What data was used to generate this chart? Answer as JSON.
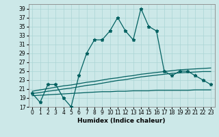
{
  "xlabel": "Humidex (Indice chaleur)",
  "x": [
    0,
    1,
    2,
    3,
    4,
    5,
    6,
    7,
    8,
    9,
    10,
    11,
    12,
    13,
    14,
    15,
    16,
    17,
    18,
    19,
    20,
    21,
    22,
    23
  ],
  "main_y": [
    20,
    18,
    22,
    22,
    19,
    17,
    24,
    29,
    32,
    32,
    34,
    37,
    34,
    32,
    39,
    35,
    34,
    25,
    24,
    25,
    25,
    24,
    23,
    22
  ],
  "trend1_y": [
    20.5,
    20.8,
    21.1,
    21.4,
    21.7,
    21.9,
    22.2,
    22.5,
    22.7,
    23.0,
    23.3,
    23.5,
    23.8,
    24.0,
    24.3,
    24.5,
    24.7,
    24.9,
    25.1,
    25.3,
    25.4,
    25.5,
    25.6,
    25.7
  ],
  "trend2_y": [
    19.5,
    19.6,
    19.7,
    19.8,
    19.9,
    20.0,
    20.1,
    20.2,
    20.3,
    20.4,
    20.4,
    20.5,
    20.5,
    20.6,
    20.6,
    20.6,
    20.7,
    20.7,
    20.7,
    20.7,
    20.7,
    20.8,
    20.8,
    20.8
  ],
  "trend3_y": [
    20.0,
    20.2,
    20.5,
    20.7,
    21.0,
    21.2,
    21.5,
    21.8,
    22.0,
    22.3,
    22.6,
    22.9,
    23.1,
    23.4,
    23.7,
    23.9,
    24.1,
    24.3,
    24.5,
    24.6,
    24.7,
    24.8,
    24.9,
    24.9
  ],
  "ylim": [
    17,
    40
  ],
  "yticks": [
    17,
    19,
    21,
    23,
    25,
    27,
    29,
    31,
    33,
    35,
    37,
    39
  ],
  "xticks": [
    0,
    1,
    2,
    3,
    4,
    5,
    6,
    7,
    8,
    9,
    10,
    11,
    12,
    13,
    14,
    15,
    16,
    17,
    18,
    19,
    20,
    21,
    22,
    23
  ],
  "line_color": "#006060",
  "bg_color": "#cce8e8",
  "grid_color": "#aad4d4",
  "marker": "*",
  "marker_size": 3.5,
  "line_width": 0.9,
  "label_fontsize": 6.5,
  "tick_fontsize": 5.5
}
